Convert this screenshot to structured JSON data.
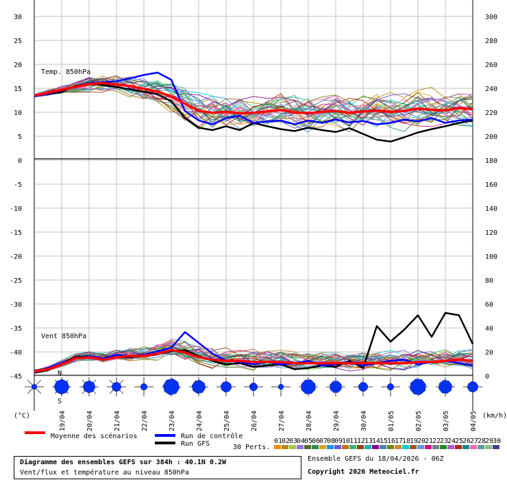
{
  "chart_data": {
    "type": "line",
    "title": "Diagramme des ensembles GEFS sur 384h : 40.1N 0.2W",
    "subtitle": "Vent/flux et température au niveau 850hPa",
    "run_info": "Ensemble GEFS du 18/04/2026 - 06Z",
    "copyright": "Copyright 2026 Meteociel.fr",
    "left_axis_unit": "(°C)",
    "right_axis_unit": "(km/h)",
    "left_ticks": [
      "30",
      "25",
      "20",
      "15",
      "10",
      "5",
      "0",
      "-5",
      "-10",
      "-15",
      "-20",
      "-25",
      "-30",
      "-35",
      "-40",
      "-45"
    ],
    "right_ticks": [
      "300",
      "280",
      "260",
      "240",
      "220",
      "200",
      "180",
      "160",
      "140",
      "120",
      "100",
      "80",
      "60",
      "40",
      "20",
      "0"
    ],
    "x_ticks": [
      "19/04",
      "20/04",
      "21/04",
      "22/04",
      "23/04",
      "24/04",
      "25/04",
      "26/04",
      "27/04",
      "28/04",
      "29/04",
      "30/04",
      "01/05",
      "02/05",
      "03/05",
      "04/05"
    ],
    "panels": {
      "temperature_label": "Temp. 850hPa",
      "wind_label": "Vent 850hPa"
    },
    "temperature": {
      "x_hours": [
        0,
        12,
        24,
        36,
        48,
        60,
        72,
        84,
        96,
        108,
        120,
        132,
        144,
        156,
        168,
        180,
        192,
        204,
        216,
        228,
        240,
        252,
        264,
        276,
        288,
        300,
        312,
        324,
        336,
        348,
        360,
        372,
        384
      ],
      "mean": [
        13.2,
        13.8,
        14.4,
        15.0,
        15.6,
        15.8,
        15.5,
        15.2,
        14.6,
        14.0,
        13.0,
        11.5,
        10.0,
        9.6,
        9.8,
        9.5,
        9.6,
        9.9,
        10.2,
        9.7,
        9.5,
        9.8,
        10.0,
        9.6,
        9.9,
        10.1,
        9.8,
        10.0,
        10.5,
        10.2,
        10.1,
        10.6,
        10.4
      ],
      "control": [
        13.0,
        13.6,
        14.3,
        15.0,
        15.8,
        16.0,
        16.2,
        16.8,
        17.5,
        18.0,
        16.5,
        10.0,
        8.0,
        7.2,
        8.5,
        9.0,
        7.5,
        7.8,
        8.0,
        7.2,
        8.0,
        7.5,
        8.2,
        7.6,
        7.9,
        7.2,
        7.5,
        8.2,
        7.8,
        8.5,
        7.5,
        8.0,
        8.2
      ],
      "gfs": [
        13.2,
        13.5,
        14.0,
        15.2,
        15.6,
        15.4,
        15.0,
        14.5,
        14.0,
        13.5,
        12.0,
        8.5,
        6.5,
        6.0,
        6.8,
        6.0,
        7.5,
        6.8,
        6.2,
        5.8,
        6.5,
        6.0,
        5.6,
        6.4,
        5.2,
        4.0,
        3.6,
        4.5,
        5.5,
        6.2,
        6.8,
        7.5,
        8.0
      ]
    },
    "wind": {
      "x_hours": [
        0,
        12,
        24,
        36,
        48,
        60,
        72,
        84,
        96,
        108,
        120,
        132,
        144,
        156,
        168,
        180,
        192,
        204,
        216,
        228,
        240,
        252,
        264,
        276,
        288,
        300,
        312,
        324,
        336,
        348,
        360,
        372,
        384
      ],
      "mean": [
        3,
        5,
        9,
        14,
        15,
        13,
        15,
        16,
        16,
        18,
        21,
        19,
        15,
        13,
        12,
        12,
        11,
        11,
        11,
        10,
        10,
        10,
        10,
        10,
        10,
        10,
        10,
        10,
        11,
        11,
        12,
        13,
        12
      ],
      "control": [
        2,
        6,
        10,
        14,
        16,
        14,
        17,
        16,
        17,
        20,
        23,
        36,
        27,
        18,
        12,
        11,
        9,
        11,
        9,
        10,
        12,
        8,
        9,
        11,
        8,
        10,
        12,
        13,
        9,
        11,
        12,
        10,
        8
      ],
      "gfs": [
        2,
        4,
        10,
        15,
        16,
        13,
        15,
        15,
        16,
        18,
        20,
        21,
        16,
        12,
        9,
        10,
        7,
        8,
        9,
        5,
        6,
        8,
        7,
        12,
        6,
        41,
        28,
        38,
        50,
        32,
        52,
        50,
        26
      ]
    },
    "legend": {
      "mean": "Moyenne des scénarios",
      "control": "Run de contrôle",
      "gfs": "Run GFS",
      "perts_label": "30 Perts.",
      "perts_numbers": [
        "01",
        "02",
        "03",
        "04",
        "05",
        "06",
        "07",
        "08",
        "09",
        "10",
        "11",
        "12",
        "13",
        "14",
        "15",
        "16",
        "17",
        "18",
        "19",
        "20",
        "21",
        "22",
        "23",
        "24",
        "25",
        "26",
        "27",
        "28",
        "29",
        "30"
      ]
    },
    "wind_direction_labels": {
      "north": "N",
      "south": "S"
    },
    "colors": {
      "mean": "#ff0000",
      "control": "#0000ff",
      "gfs": "#000000",
      "grid": "#c0c0c0",
      "perts": [
        "#ff8c00",
        "#b8860b",
        "#9acd32",
        "#9370db",
        "#556b2f",
        "#2e8b57",
        "#daa520",
        "#1e90ff",
        "#6a5acd",
        "#d2691e",
        "#3cb371",
        "#8b4513",
        "#20b2aa",
        "#8b008b",
        "#4682b4",
        "#808000",
        "#cd853f",
        "#00ced1",
        "#a0522d",
        "#6495ed",
        "#c71585",
        "#708090",
        "#228b22",
        "#ba55d3",
        "#b22222",
        "#008b8b",
        "#ff69b4",
        "#5f9ea0",
        "#8fbc8f",
        "#483d8b"
      ]
    }
  }
}
